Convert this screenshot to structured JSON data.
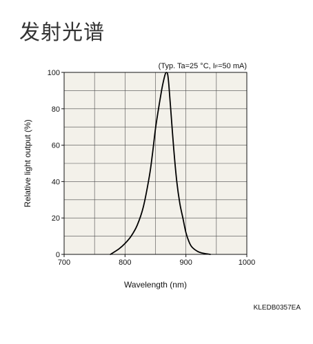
{
  "page": {
    "title": "发射光谱"
  },
  "chart_data": {
    "type": "line",
    "title": "",
    "condition_label": "(Typ. Ta=25 °C, IF=50 mA)",
    "condition_parts": {
      "prefix": "(Typ. Ta=25 °C, I",
      "subscript": "F",
      "suffix": "=50 mA)"
    },
    "xlabel": "Wavelength (nm)",
    "ylabel": "Relative light output (%)",
    "xlim": [
      700,
      1000
    ],
    "ylim": [
      0,
      100
    ],
    "x_ticks": [
      700,
      800,
      900,
      1000
    ],
    "x_tick_labels": [
      "700",
      "800",
      "900",
      "1000"
    ],
    "x_minor_step": 50,
    "y_ticks": [
      0,
      20,
      40,
      60,
      80,
      100
    ],
    "y_tick_labels": [
      "0",
      "20",
      "40",
      "60",
      "80",
      "100"
    ],
    "y_minor_step": 10,
    "grid": true,
    "plot_background": "#f3f1ea",
    "line_color": "#000000",
    "grid_color": "#4a4a4a",
    "series": [
      {
        "x": [
          776,
          790,
          800,
          810,
          820,
          830,
          840,
          845,
          850,
          855,
          860,
          863,
          866,
          868,
          870,
          872,
          875,
          880,
          885,
          890,
          895,
          900,
          905,
          910,
          920,
          930,
          940
        ],
        "y": [
          0,
          3,
          6,
          10,
          16,
          26,
          43,
          55,
          69,
          80,
          90,
          95,
          99,
          100,
          99,
          93,
          80,
          58,
          40,
          28,
          20,
          12,
          7,
          4,
          1.5,
          0.5,
          0
        ]
      }
    ],
    "document_code": "KLEDB0357EA"
  }
}
